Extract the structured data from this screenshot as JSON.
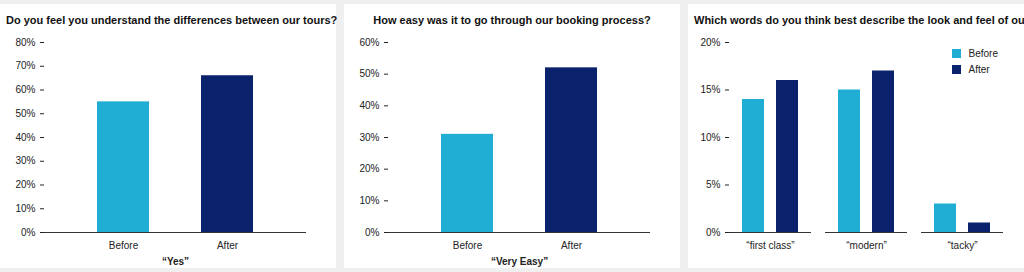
{
  "chart_data": [
    {
      "type": "bar",
      "title": "Do you feel you understand the differences between our tours?",
      "x_label": "“Yes”",
      "categories": [
        "Before",
        "After"
      ],
      "values": [
        55,
        66
      ],
      "colors": [
        "#1fadd4",
        "#0a216b"
      ],
      "ylim": [
        0,
        80
      ],
      "yticks": [
        {
          "value": 0,
          "label": "0%"
        },
        {
          "value": 10,
          "label": "10%"
        },
        {
          "value": 20,
          "label": "20%"
        },
        {
          "value": 30,
          "label": "30%"
        },
        {
          "value": 40,
          "label": "40%"
        },
        {
          "value": 50,
          "label": "50%"
        },
        {
          "value": 60,
          "label": "60%"
        },
        {
          "value": 70,
          "label": "70%"
        },
        {
          "value": 80,
          "label": "80%"
        }
      ]
    },
    {
      "type": "bar",
      "title": "How easy was it to go through our booking process?",
      "x_label": "“Very Easy”",
      "categories": [
        "Before",
        "After"
      ],
      "values": [
        31,
        52
      ],
      "colors": [
        "#1fadd4",
        "#0a216b"
      ],
      "ylim": [
        0,
        60
      ],
      "yticks": [
        {
          "value": 0,
          "label": "0%"
        },
        {
          "value": 10,
          "label": "10%"
        },
        {
          "value": 20,
          "label": "20%"
        },
        {
          "value": 30,
          "label": "30%"
        },
        {
          "value": 40,
          "label": "40%"
        },
        {
          "value": 50,
          "label": "50%"
        },
        {
          "value": 60,
          "label": "60%"
        }
      ]
    },
    {
      "type": "bar",
      "title": "Which words do you think best describe the look and feel of our site?",
      "categories": [
        "“first class”",
        "“modern”",
        "“tacky”"
      ],
      "series": [
        {
          "name": "Before",
          "color": "#1fadd4",
          "values": [
            14,
            15,
            3
          ]
        },
        {
          "name": "After",
          "color": "#0a216b",
          "values": [
            16,
            17,
            1
          ]
        }
      ],
      "ylim": [
        0,
        20
      ],
      "yticks": [
        {
          "value": 0,
          "label": "0%"
        },
        {
          "value": 5,
          "label": "5%"
        },
        {
          "value": 10,
          "label": "10%"
        },
        {
          "value": 15,
          "label": "15%"
        },
        {
          "value": 20,
          "label": "20%"
        }
      ],
      "legend": "top-right"
    }
  ]
}
